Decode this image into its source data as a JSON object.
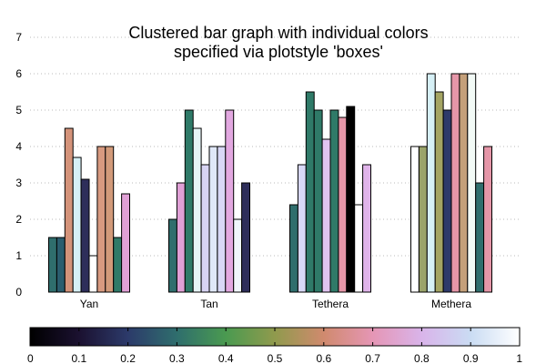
{
  "chart_data": {
    "type": "bar",
    "title": [
      "Clustered bar graph with individual colors",
      "specified via plotstyle 'boxes'"
    ],
    "xlabel": "",
    "ylabel": "",
    "categories": [
      "Yan",
      "Tan",
      "Tethera",
      "Methera"
    ],
    "ylim": [
      0,
      7
    ],
    "yticks": [
      "0",
      "1",
      "2",
      "3",
      "4",
      "5",
      "6",
      "7"
    ],
    "grid": "horizontal dotted",
    "colorbar": {
      "range": [
        0,
        1
      ],
      "ticks": [
        "0",
        "0.1",
        "0.2",
        "0.3",
        "0.4",
        "0.5",
        "0.6",
        "0.7",
        "0.8",
        "0.9",
        "1"
      ],
      "palette": "cubehelix",
      "stops": [
        "#000000",
        "#1b1130",
        "#2c3a6a",
        "#2f6e6d",
        "#4a9a50",
        "#909a4d",
        "#d08a6e",
        "#e596b5",
        "#d9b4ea",
        "#cadcf3",
        "#ffffff"
      ]
    },
    "bars_per_group": 10,
    "groups": [
      {
        "name": "Yan",
        "values": [
          1.5,
          1.5,
          4.5,
          3.7,
          3.1,
          1.0,
          4.0,
          4.0,
          1.5,
          2.7
        ],
        "colors": [
          "#2f6e6d",
          "#2a5d6e",
          "#d4937a",
          "#d6f0f6",
          "#2e2e5a",
          "#ffffff",
          "#d89a80",
          "#d29a7a",
          "#2f7a68",
          "#e0a0d6"
        ]
      },
      {
        "name": "Tan",
        "values": [
          2.0,
          3.0,
          5.0,
          4.5,
          3.5,
          4.0,
          4.0,
          5.0,
          2.0,
          3.0
        ],
        "colors": [
          "#2f6e6d",
          "#e0a0d6",
          "#2f7a68",
          "#e6f4f6",
          "#d8d4f3",
          "#e0e8f8",
          "#d8d8f6",
          "#e2a8e0",
          "#f0f6fb",
          "#2e2e5a"
        ]
      },
      {
        "name": "Tethera",
        "values": [
          2.4,
          3.5,
          5.5,
          5.0,
          4.2,
          5.0,
          4.8,
          5.1,
          2.4,
          3.5
        ],
        "colors": [
          "#2f6e6d",
          "#d8d8f6",
          "#2f7a68",
          "#2f7a68",
          "#e0c4f0",
          "#2f7a68",
          "#e596a8",
          "#000000",
          "#ffffff",
          "#e0b4ea"
        ]
      },
      {
        "name": "Methera",
        "values": [
          4.0,
          4.0,
          6.0,
          5.5,
          5.0,
          6.0,
          6.0,
          6.0,
          3.0,
          4.0
        ],
        "colors": [
          "#ffffff",
          "#9aa46a",
          "#d6f0f6",
          "#a4a463",
          "#2e3a6a",
          "#e596a8",
          "#c4a07a",
          "#f2faf6",
          "#2f6e6d",
          "#e596a8"
        ]
      }
    ]
  }
}
